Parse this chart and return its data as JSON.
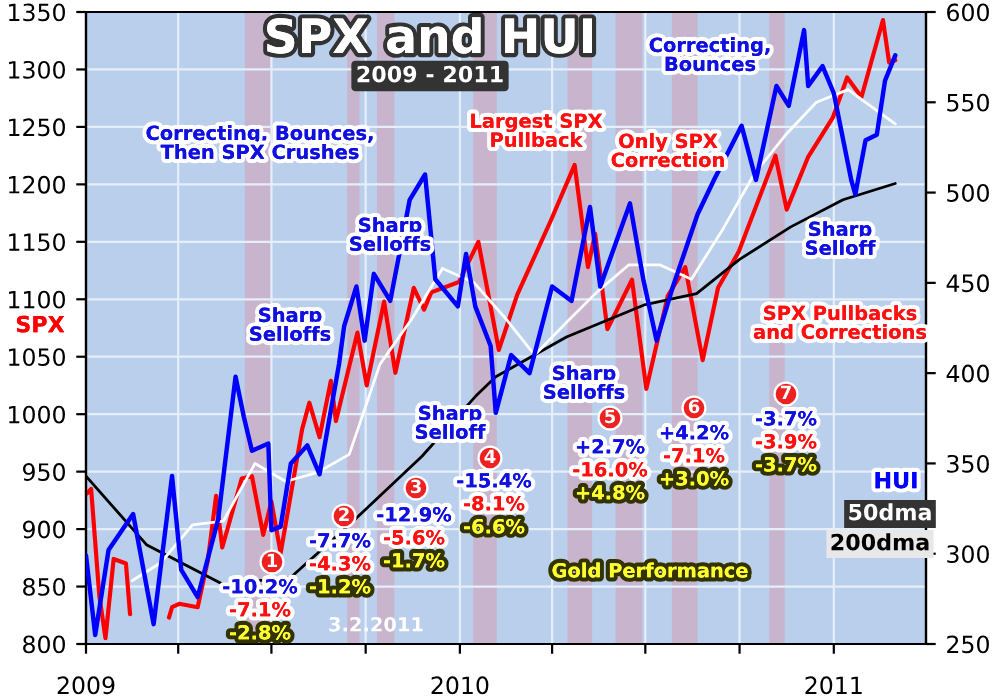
{
  "chart_data": {
    "type": "line",
    "title": "SPX and HUI",
    "subtitle": "2009 - 2011",
    "xlim": [
      "2009-01-01",
      "2011-04-01"
    ],
    "xticks": [
      {
        "value": "2009-01-01",
        "label": "2009"
      },
      {
        "value": "2009-04-01",
        "label": null
      },
      {
        "value": "2009-07-01",
        "label": null
      },
      {
        "value": "2009-10-01",
        "label": null
      },
      {
        "value": "2010-01-01",
        "label": "2010"
      },
      {
        "value": "2010-04-01",
        "label": null
      },
      {
        "value": "2010-07-01",
        "label": null
      },
      {
        "value": "2010-10-01",
        "label": null
      },
      {
        "value": "2011-01-01",
        "label": "2011"
      }
    ],
    "ylim": [
      800,
      1350
    ],
    "yticks": [
      800,
      850,
      900,
      950,
      1000,
      1050,
      1100,
      1150,
      1200,
      1250,
      1300,
      1350
    ],
    "y2lim": [
      250,
      600
    ],
    "y2ticks": [
      250,
      300,
      350,
      400,
      450,
      500,
      550,
      600
    ],
    "grid": true,
    "legend": false,
    "bands": [
      {
        "axis": "x",
        "from": "2009-06-05",
        "to": "2009-07-01",
        "color": "#cfa9c0"
      },
      {
        "axis": "x",
        "from": "2009-09-13",
        "to": "2009-09-25",
        "color": "#cfa9c0"
      },
      {
        "axis": "x",
        "from": "2009-10-12",
        "to": "2009-10-29",
        "color": "#cfa9c0"
      },
      {
        "axis": "x",
        "from": "2010-01-14",
        "to": "2010-02-06",
        "color": "#cfa9c0"
      },
      {
        "axis": "x",
        "from": "2010-04-16",
        "to": "2010-05-10",
        "color": "#cfa9c0"
      },
      {
        "axis": "x",
        "from": "2010-06-02",
        "to": "2010-06-28",
        "color": "#cfa9c0"
      },
      {
        "axis": "x",
        "from": "2010-07-27",
        "to": "2010-08-21",
        "color": "#cfa9c0"
      },
      {
        "axis": "x",
        "from": "2010-10-30",
        "to": "2010-11-14",
        "color": "#cfa9c0"
      }
    ],
    "series": [
      {
        "name": "200dma",
        "color": "#000000",
        "axis": "y2",
        "x": [
          "2009-01-01",
          "2009-03-01",
          "2009-05-15",
          "2009-07-20",
          "2009-09-15",
          "2009-11-25",
          "2010-01-16",
          "2010-02-05",
          "2010-04-15",
          "2010-07-01",
          "2010-08-20",
          "2010-10-01",
          "2010-11-20",
          "2011-01-10",
          "2011-03-02"
        ],
        "values": [
          343,
          305,
          283,
          287,
          316,
          354,
          387,
          398,
          420,
          438,
          444,
          463,
          481,
          496,
          505
        ]
      },
      {
        "name": "50dma",
        "color": "#ffffff",
        "axis": "y2",
        "x": [
          "2009-02-15",
          "2009-03-15",
          "2009-04-15",
          "2009-05-15",
          "2009-06-15",
          "2009-07-15",
          "2009-08-15",
          "2009-09-15",
          "2009-10-15",
          "2009-11-15",
          "2009-12-15",
          "2010-01-15",
          "2010-02-15",
          "2010-03-15",
          "2010-04-15",
          "2010-05-15",
          "2010-06-15",
          "2010-07-15",
          "2010-08-15",
          "2010-09-15",
          "2010-10-15",
          "2010-11-15",
          "2010-12-15",
          "2011-01-15",
          "2011-02-01",
          "2011-03-02"
        ],
        "values": [
          285,
          295,
          316,
          318,
          350,
          340,
          345,
          355,
          405,
          430,
          458,
          450,
          430,
          410,
          428,
          445,
          460,
          460,
          452,
          480,
          510,
          532,
          550,
          557,
          550,
          538
        ]
      },
      {
        "name": "SPX",
        "color": "#ff0000",
        "axis": "y",
        "x": [
          "2009-01-02",
          "2009-01-06",
          "2009-01-14",
          "2009-01-20",
          "2009-01-28",
          "2009-02-09",
          "2009-02-13",
          "2009-02-17",
          "2009-03-20",
          "2009-03-23",
          "2009-03-26",
          "2009-04-02",
          "2009-04-20",
          "2009-04-30",
          "2009-05-08",
          "2009-05-14",
          "2009-06-02",
          "2009-06-12",
          "2009-06-23",
          "2009-07-01",
          "2009-07-10",
          "2009-07-31",
          "2009-08-07",
          "2009-08-17",
          "2009-08-28",
          "2009-09-02",
          "2009-09-23",
          "2009-10-02",
          "2009-10-19",
          "2009-10-30",
          "2009-11-17",
          "2009-11-27",
          "2009-12-04",
          "2009-12-31",
          "2010-01-19",
          "2010-02-08",
          "2010-02-26",
          "2010-03-31",
          "2010-04-23",
          "2010-05-06",
          "2010-05-13",
          "2010-05-25",
          "2010-06-18",
          "2010-07-02",
          "2010-07-23",
          "2010-08-09",
          "2010-08-26",
          "2010-09-10",
          "2010-09-30",
          "2010-11-05",
          "2010-11-16",
          "2010-12-07",
          "2010-12-31",
          "2011-01-14",
          "2011-01-28",
          "2011-02-18",
          "2011-02-24",
          "2011-03-02"
        ],
        "values": [
          931,
          935,
          842,
          805,
          874,
          870,
          826,
          null,
          null,
          823,
          832,
          835,
          832,
          873,
          929,
          884,
          944,
          946,
          895,
          924,
          879,
          987,
          1010,
          980,
          1029,
          994,
          1071,
          1025,
          1098,
          1036,
          1110,
          1091,
          1106,
          1115,
          1150,
          1056,
          1104,
          1169,
          1217,
          1128,
          1157,
          1074,
          1117,
          1022,
          1103,
          1128,
          1047,
          1110,
          1141,
          1225,
          1178,
          1224,
          1258,
          1293,
          1276,
          1343,
          1306,
          1308
        ]
      },
      {
        "name": "HUI",
        "color": "#0000ff",
        "axis": "y2",
        "x": [
          "2009-01-01",
          "2009-01-10",
          "2009-01-23",
          "2009-02-16",
          "2009-03-08",
          "2009-03-26",
          "2009-04-04",
          "2009-04-20",
          "2009-05-10",
          "2009-05-27",
          "2009-06-04",
          "2009-06-12",
          "2009-06-28",
          "2009-07-01",
          "2009-07-10",
          "2009-07-20",
          "2009-08-05",
          "2009-08-17",
          "2009-09-05",
          "2009-09-10",
          "2009-09-22",
          "2009-09-30",
          "2009-10-09",
          "2009-10-25",
          "2009-11-13",
          "2009-11-28",
          "2009-12-08",
          "2009-12-30",
          "2010-01-07",
          "2010-01-16",
          "2010-01-31",
          "2010-02-05",
          "2010-02-20",
          "2010-03-10",
          "2010-04-01",
          "2010-04-20",
          "2010-05-08",
          "2010-05-18",
          "2010-06-16",
          "2010-06-29",
          "2010-07-12",
          "2010-07-28",
          "2010-08-21",
          "2010-09-06",
          "2010-10-03",
          "2010-10-17",
          "2010-11-06",
          "2010-11-18",
          "2010-12-03",
          "2010-12-07",
          "2010-12-21",
          "2011-01-01",
          "2011-01-18",
          "2011-01-22",
          "2011-02-01",
          "2011-02-12",
          "2011-02-20",
          "2011-03-02"
        ],
        "values": [
          299,
          255,
          302,
          322,
          261,
          343,
          291,
          276,
          319,
          398,
          376,
          357,
          361,
          313,
          315,
          350,
          360,
          344,
          405,
          426,
          448,
          418,
          455,
          440,
          496,
          510,
          452,
          437,
          466,
          437,
          415,
          378,
          410,
          400,
          448,
          440,
          492,
          448,
          494,
          452,
          418,
          448,
          488,
          507,
          537,
          507,
          559,
          548,
          590,
          559,
          570,
          555,
          507,
          499,
          529,
          532,
          562,
          576
        ]
      }
    ],
    "annotations": [
      "Correcting, Bounces,\nThen SPX Crushes",
      "Largest SPX\nPullback",
      "Only SPX\nCorrection",
      "Correcting,\nBounces",
      "Sharp\nSelloffs",
      "Sharp\nSelloffs",
      "Sharp\nSelloff",
      "Sharp\nSelloffs",
      "Sharp\nSelloff",
      "SPX Pullbacks\nand Corrections",
      "Gold Performance",
      "3.2.2011",
      "1",
      "-10.2%",
      "-7.1%",
      "-2.8%",
      "2",
      "-7.7%",
      "-4.3%",
      "-1.2%",
      "3",
      "-12.9%",
      "-5.6%",
      "-1.7%",
      "4",
      "-15.4%",
      "-8.1%",
      "-6.6%",
      "5",
      "+2.7%",
      "-16.0%",
      "+4.8%",
      "6",
      "+4.2%",
      "-7.1%",
      "+3.0%",
      "7",
      "-3.7%",
      "-3.9%",
      "-3.7%"
    ]
  }
}
